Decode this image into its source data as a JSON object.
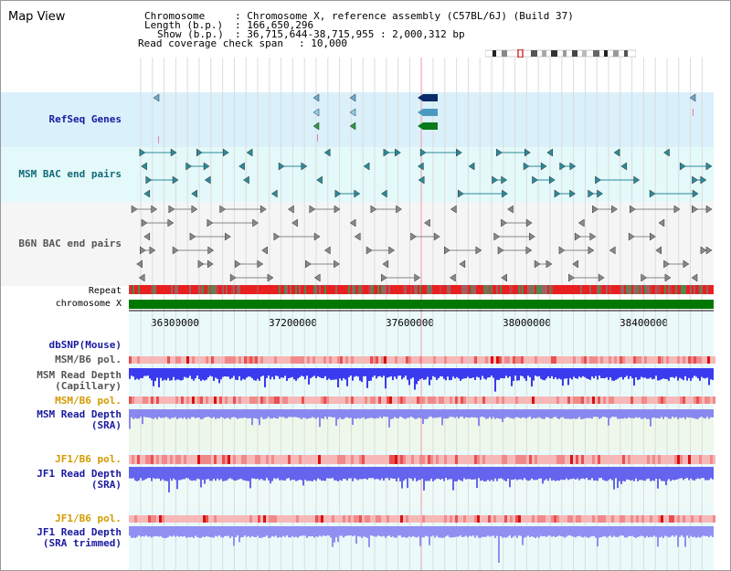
{
  "app": {
    "title": "Map View"
  },
  "header": {
    "chromosome_key": "Chromosome",
    "chromosome_val": ": Chromosome X, reference assembly (C57BL/6J) (Build 37)",
    "length_key": "Length (b.p.)",
    "length_val": ": 166,650,296",
    "show_key": "Show (b.p.)",
    "show_val": ": 36,715,644-38,715,955 : 2,000,312 bp",
    "span_key": "Read coverage check span",
    "span_val": ": 10,000"
  },
  "tracks": {
    "refseq": "RefSeq Genes",
    "msm_bac": "MSM BAC end pairs",
    "b6n_bac": "B6N BAC end pairs",
    "repeat": "Repeat",
    "chrom": "chromosome X",
    "dbsnp": "dbSNP(Mouse)",
    "msm_b6_pol_1": "MSM/B6 pol.",
    "msm_depth_cap_1": "MSM Read Depth",
    "msm_depth_cap_2": "(Capillary)",
    "msm_b6_pol_2": "MSM/B6 pol.",
    "msm_depth_sra_1": "MSM Read Depth",
    "msm_depth_sra_2": "(SRA)",
    "jf1_b6_pol_1": "JF1/B6 pol.",
    "jf1_depth_sra_1": "JF1 Read Depth",
    "jf1_depth_sra_2": "(SRA)",
    "jf1_b6_pol_2": "JF1/B6 pol.",
    "jf1_depth_trim_1": "JF1 Read Depth",
    "jf1_depth_trim_2": "(SRA trimmed)"
  },
  "axis": {
    "ticks": [
      "36800000",
      "37200000",
      "37600000",
      "38000000",
      "38400000"
    ]
  },
  "colors": {
    "refseq_bg": "#daf0fa",
    "msm_bg": "#e6fafa",
    "b6n_bg": "#f4f4f4",
    "chrom_green": "#007700",
    "depth_blue": "#3a3ae8",
    "depth_light": "#8888f4",
    "pol_pink": "#f7b4b4"
  }
}
